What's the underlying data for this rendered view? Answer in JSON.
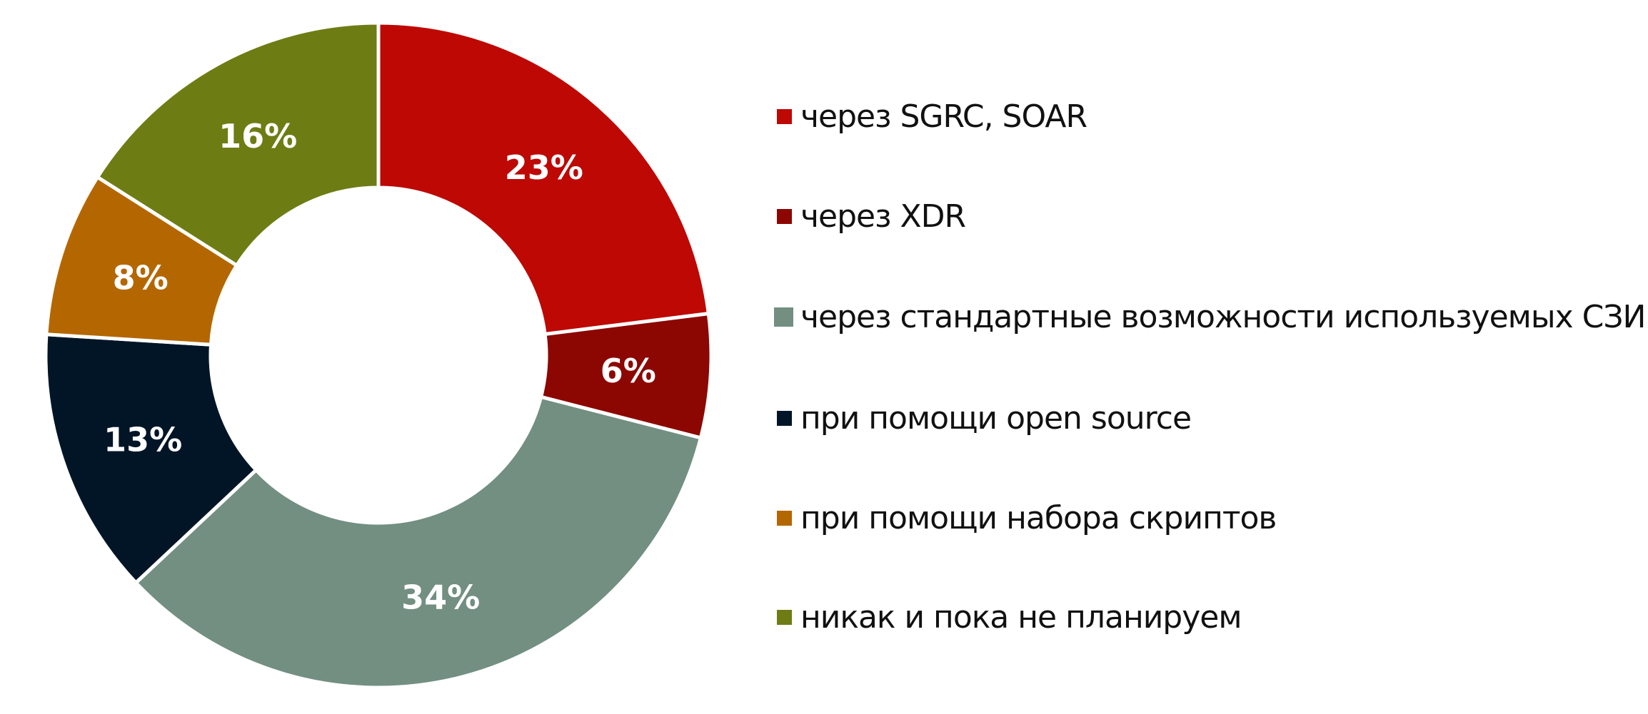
{
  "chart_data": {
    "type": "pie",
    "variant": "donut",
    "start": "top, clockwise",
    "legend_placement": "right",
    "categories": [
      "через SGRC, SOAR",
      "через XDR",
      "через стандартные возможности используемых СЗИ",
      "при помощи open source",
      "при помощи набора скриптов",
      "никак и пока не планируем"
    ],
    "values": [
      23,
      6,
      34,
      13,
      8,
      16
    ],
    "labels": [
      "23%",
      "6%",
      "34%",
      "13%",
      "8%",
      "16%"
    ],
    "colors": [
      "#be0804",
      "#8c0702",
      "#728f82",
      "#011527",
      "#b46700",
      "#6e7c14"
    ]
  }
}
